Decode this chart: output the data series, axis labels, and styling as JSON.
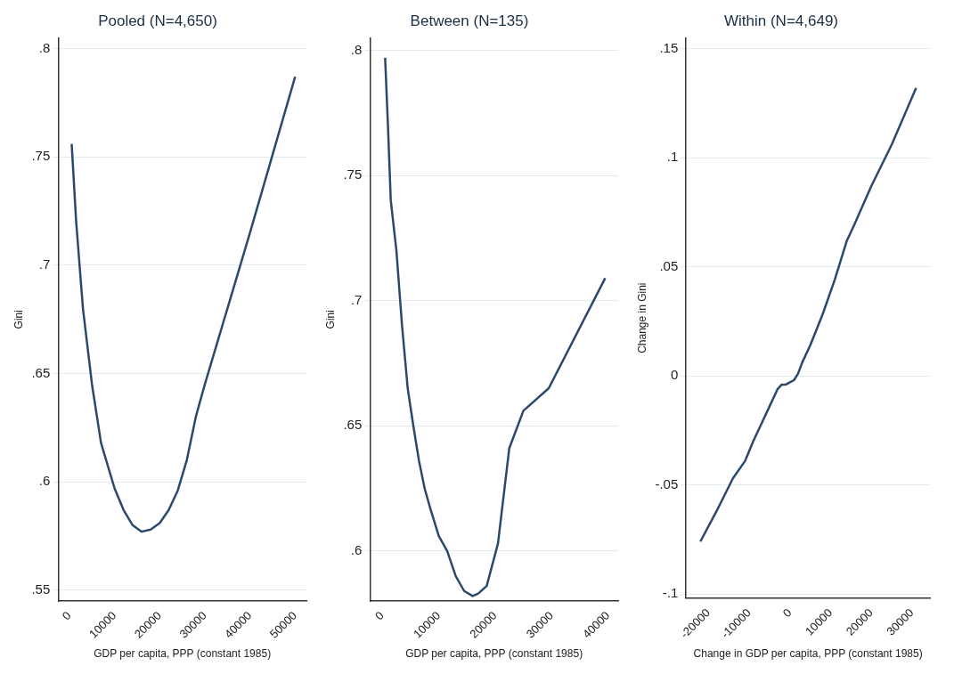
{
  "chart_data": [
    {
      "type": "line",
      "title": "Pooled (N=4,650)",
      "xlabel": "GDP per capita, PPP (constant 1985)",
      "ylabel": "Gini",
      "grid": "y",
      "marker": "none",
      "line_style": "solid",
      "xlim": [
        -2500,
        52500
      ],
      "ylim": [
        0.545,
        0.805
      ],
      "xticks": [
        0,
        10000,
        20000,
        30000,
        40000,
        50000
      ],
      "yticks": [
        {
          "value": 0.55,
          "label": ".55"
        },
        {
          "value": 0.6,
          "label": ".6"
        },
        {
          "value": 0.65,
          "label": ".65"
        },
        {
          "value": 0.7,
          "label": ".7"
        },
        {
          "value": 0.75,
          "label": ".75"
        },
        {
          "value": 0.8,
          "label": ".8"
        }
      ],
      "series": [
        {
          "color": "#2b4a6b",
          "x": [
            500,
            1500,
            3000,
            5000,
            7000,
            10000,
            12000,
            14000,
            16000,
            18000,
            20000,
            22000,
            24000,
            26000,
            28000,
            30000,
            35000,
            40000,
            45000,
            50000
          ],
          "values": [
            0.756,
            0.72,
            0.68,
            0.645,
            0.618,
            0.597,
            0.587,
            0.58,
            0.577,
            0.578,
            0.581,
            0.587,
            0.596,
            0.61,
            0.63,
            0.645,
            0.68,
            0.715,
            0.751,
            0.787
          ]
        }
      ]
    },
    {
      "type": "line",
      "title": "Between (N=135)",
      "xlabel": "GDP per capita, PPP (constant 1985)",
      "ylabel": "Gini",
      "grid": "y",
      "marker": "none",
      "line_style": "solid",
      "xlim": [
        -2200,
        41800
      ],
      "ylim": [
        0.58,
        0.805
      ],
      "xticks": [
        0,
        10000,
        20000,
        30000,
        40000
      ],
      "yticks": [
        {
          "value": 0.6,
          "label": ".6"
        },
        {
          "value": 0.65,
          "label": ".65"
        },
        {
          "value": 0.7,
          "label": ".7"
        },
        {
          "value": 0.75,
          "label": ".75"
        },
        {
          "value": 0.8,
          "label": ".8"
        }
      ],
      "series": [
        {
          "color": "#2b4a6b",
          "x": [
            500,
            1000,
            1500,
            2500,
            3500,
            4500,
            5500,
            6500,
            7500,
            8500,
            10000,
            11500,
            13000,
            14500,
            16000,
            17000,
            18500,
            20500,
            22500,
            25000,
            29500,
            39500
          ],
          "values": [
            0.797,
            0.77,
            0.74,
            0.72,
            0.69,
            0.665,
            0.65,
            0.636,
            0.625,
            0.617,
            0.606,
            0.6,
            0.59,
            0.584,
            0.582,
            0.583,
            0.586,
            0.603,
            0.641,
            0.656,
            0.665,
            0.709
          ]
        }
      ]
    },
    {
      "type": "line",
      "title": "Within (N=4,649)",
      "xlabel": "Change in GDP per capita, PPP (constant 1985)",
      "ylabel": "Change in Gini",
      "grid": "y",
      "marker": "none",
      "line_style": "solid",
      "xlim": [
        -25500,
        34400
      ],
      "ylim": [
        -0.102,
        0.155
      ],
      "xticks": [
        -20000,
        -10000,
        0,
        10000,
        20000,
        30000
      ],
      "yticks": [
        {
          "value": -0.1,
          "label": "-.1"
        },
        {
          "value": -0.05,
          "label": "-.05"
        },
        0,
        {
          "value": 0.05,
          "label": ".05"
        },
        {
          "value": 0.1,
          "label": ".1"
        },
        {
          "value": 0.15,
          "label": ".15"
        }
      ],
      "series": [
        {
          "color": "#2b4a6b",
          "x": [
            -22000,
            -18000,
            -14000,
            -11000,
            -9000,
            -7000,
            -5000,
            -3000,
            -2000,
            -1000,
            0,
            1000,
            2000,
            3000,
            5000,
            8000,
            11000,
            14000,
            16000,
            20000,
            25000,
            31000
          ],
          "values": [
            -0.076,
            -0.062,
            -0.047,
            -0.039,
            -0.03,
            -0.022,
            -0.014,
            -0.006,
            -0.004,
            -0.004,
            -0.003,
            -0.002,
            0.001,
            0.006,
            0.014,
            0.028,
            0.044,
            0.062,
            0.07,
            0.087,
            0.106,
            0.132
          ]
        }
      ]
    }
  ]
}
